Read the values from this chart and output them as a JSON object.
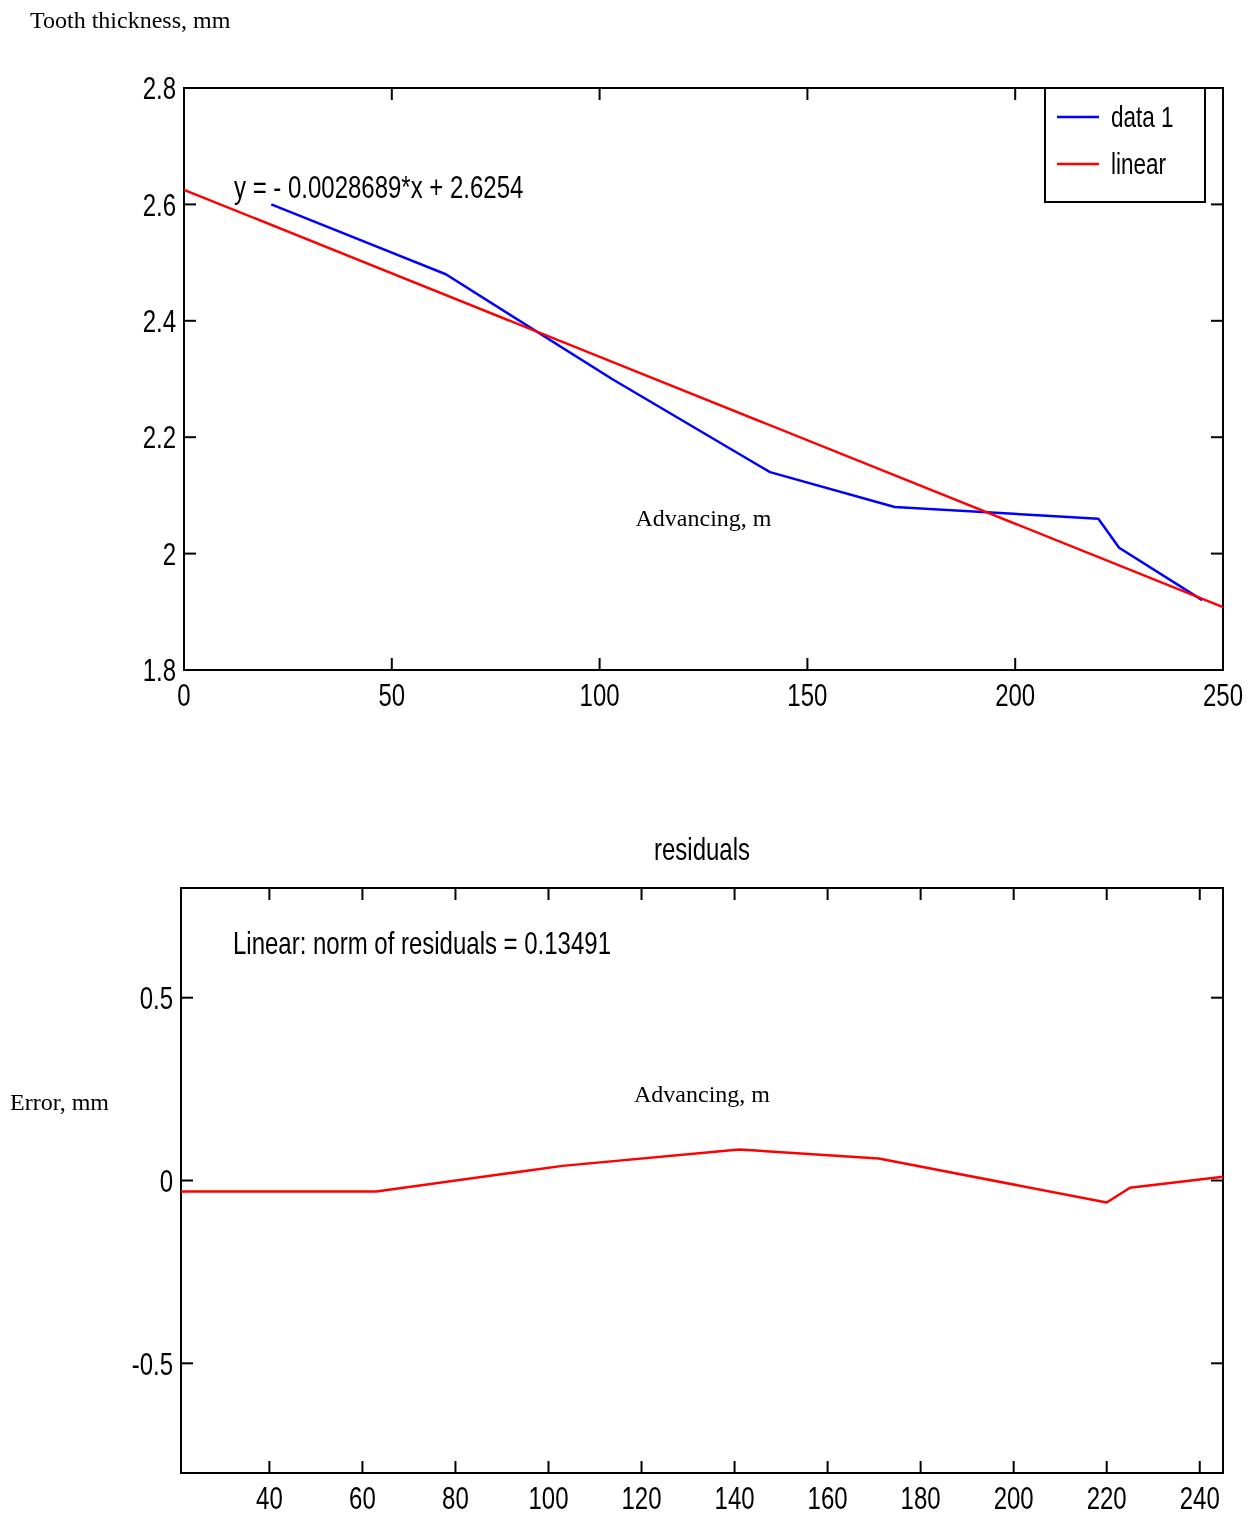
{
  "chart_data": [
    {
      "type": "line",
      "ylabel": "Tooth thickness, mm",
      "xlabel": "Advancing, m",
      "xlim": [
        0,
        250
      ],
      "xticks": [
        0,
        50,
        100,
        150,
        200,
        250
      ],
      "ylim": [
        1.8,
        2.8
      ],
      "yticks": [
        1.8,
        2,
        2.2,
        2.4,
        2.6,
        2.8
      ],
      "legend": "top right",
      "grid": false,
      "marker": "none",
      "line_style": "solid",
      "annotations": [
        "y = - 0.0028689*x + 2.6254"
      ],
      "series": [
        {
          "name": "data 1",
          "color": "#0000ff",
          "x": [
            21,
            63,
            103,
            141,
            171,
            220,
            225,
            245
          ],
          "values": [
            2.6,
            2.48,
            2.3,
            2.14,
            2.08,
            2.06,
            2.01,
            1.92
          ]
        },
        {
          "name": "linear",
          "color": "#ff0000",
          "x": [
            0,
            250
          ],
          "values": [
            2.625,
            1.908
          ]
        }
      ]
    },
    {
      "type": "line",
      "title": "residuals",
      "ylabel": "Error, mm",
      "xlabel": "Advancing, m",
      "xlim": [
        21,
        245
      ],
      "xticks": [
        40,
        60,
        80,
        100,
        120,
        140,
        160,
        180,
        200,
        220,
        240
      ],
      "ylim": [
        -0.8,
        0.8
      ],
      "yticks": [
        -0.5,
        0,
        0.5
      ],
      "grid": false,
      "legend": false,
      "marker": "none",
      "line_style": "solid",
      "annotations": [
        "Linear: norm of residuals = 0.13491"
      ],
      "series": [
        {
          "color": "#ff0000",
          "x": [
            21,
            63,
            103,
            141,
            171,
            220,
            225,
            245
          ],
          "values": [
            -0.03,
            -0.03,
            0.04,
            0.085,
            0.06,
            -0.06,
            -0.02,
            0.01
          ]
        }
      ]
    }
  ]
}
